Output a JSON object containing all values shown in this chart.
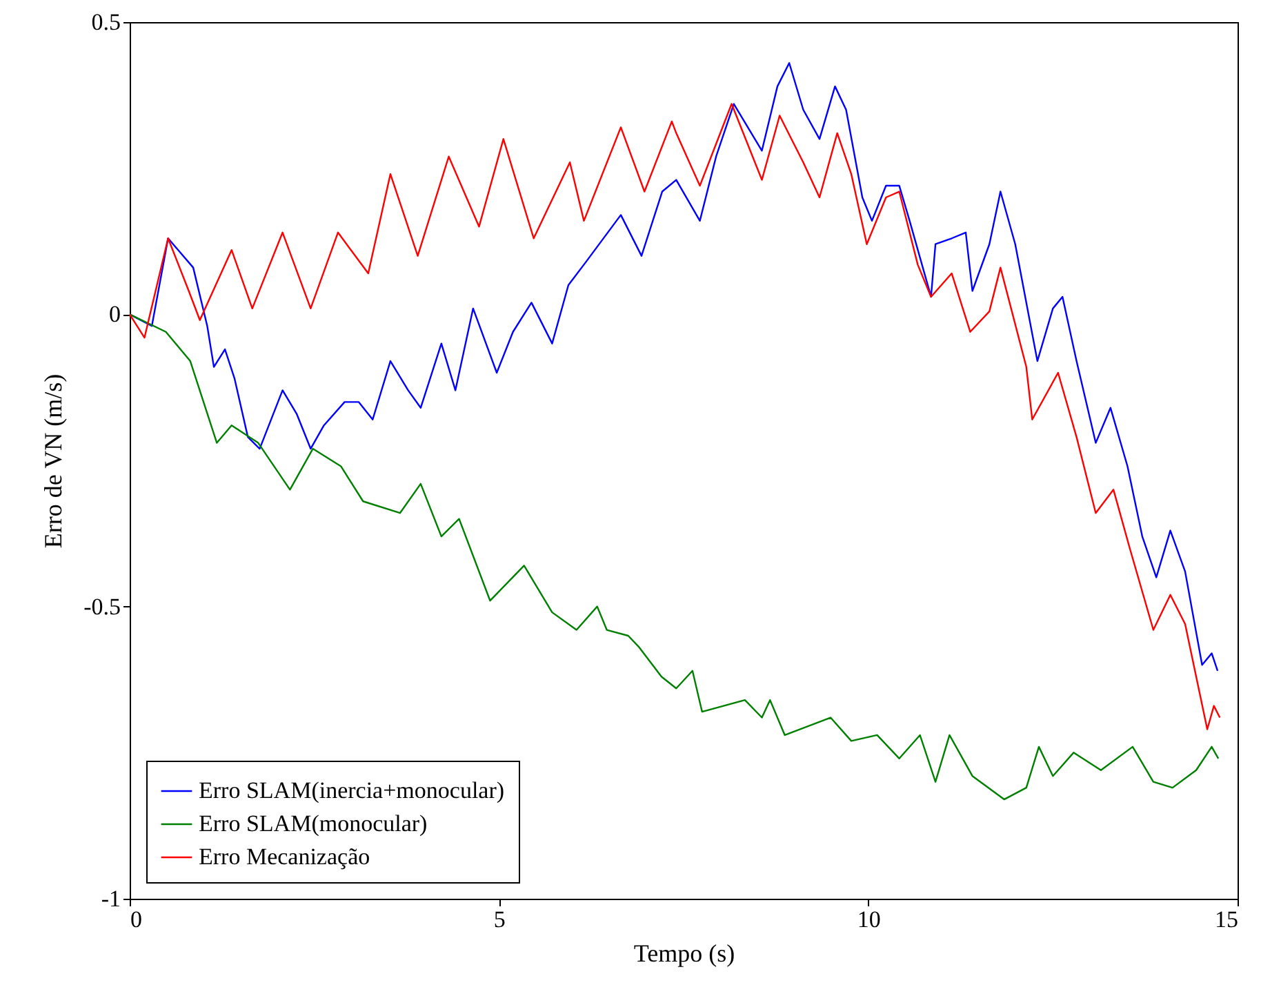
{
  "chart_data": {
    "type": "line",
    "xlabel": "Tempo (s)",
    "ylabel": "Erro de VN (m/s)",
    "xlim": [
      0,
      15
    ],
    "ylim": [
      -1,
      0.5
    ],
    "xticks": [
      0,
      5,
      10,
      15
    ],
    "yticks": [
      -1,
      -0.5,
      0,
      0.5
    ],
    "grid": false,
    "legend": "bottom left",
    "line_style": "solid",
    "marker": "none",
    "series": [
      {
        "name": "Erro SLAM(inercia+monocular)",
        "color": "#0000ff",
        "x": [
          0,
          0.3,
          0.52,
          0.86,
          1.05,
          1.14,
          1.29,
          1.42,
          1.6,
          1.76,
          2.07,
          2.26,
          2.45,
          2.63,
          2.91,
          3.1,
          3.29,
          3.53,
          3.77,
          3.94,
          4.22,
          4.41,
          4.65,
          4.97,
          5.19,
          5.44,
          5.72,
          5.94,
          6.18,
          6.65,
          6.93,
          7.21,
          7.4,
          7.72,
          7.94,
          8.18,
          8.56,
          8.77,
          8.93,
          9.12,
          9.34,
          9.55,
          9.7,
          9.92,
          10.05,
          10.24,
          10.42,
          10.56,
          10.85,
          10.91,
          11.13,
          11.32,
          11.41,
          11.64,
          11.79,
          11.99,
          12.29,
          12.5,
          12.63,
          12.82,
          13.08,
          13.28,
          13.51,
          13.71,
          13.9,
          14.09,
          14.29,
          14.52,
          14.65,
          14.73
        ],
        "values": [
          0,
          -0.02,
          0.13,
          0.08,
          -0.02,
          -0.09,
          -0.06,
          -0.11,
          -0.21,
          -0.23,
          -0.13,
          -0.17,
          -0.23,
          -0.19,
          -0.15,
          -0.15,
          -0.18,
          -0.08,
          -0.13,
          -0.16,
          -0.05,
          -0.13,
          0.01,
          -0.1,
          -0.03,
          0.02,
          -0.05,
          0.05,
          0.09,
          0.17,
          0.1,
          0.21,
          0.23,
          0.16,
          0.27,
          0.36,
          0.28,
          0.39,
          0.43,
          0.35,
          0.3,
          0.39,
          0.35,
          0.2,
          0.16,
          0.22,
          0.22,
          0.16,
          0.03,
          0.12,
          0.13,
          0.14,
          0.04,
          0.12,
          0.21,
          0.12,
          -0.08,
          0.01,
          0.03,
          -0.08,
          -0.22,
          -0.16,
          -0.26,
          -0.38,
          -0.45,
          -0.37,
          -0.44,
          -0.6,
          -0.58,
          -0.61
        ]
      },
      {
        "name": "Erro SLAM(monocular)",
        "color": "#008000",
        "x": [
          0,
          0.49,
          0.82,
          1.18,
          1.38,
          1.74,
          2.17,
          2.48,
          2.86,
          3.16,
          3.66,
          3.94,
          4.22,
          4.46,
          4.88,
          5.34,
          5.72,
          6.05,
          6.33,
          6.46,
          6.75,
          6.9,
          7.2,
          7.4,
          7.62,
          7.75,
          8.33,
          8.56,
          8.67,
          8.87,
          9.49,
          9.77,
          10.12,
          10.42,
          10.7,
          10.91,
          11.1,
          11.41,
          11.84,
          12.14,
          12.31,
          12.5,
          12.78,
          13.15,
          13.58,
          13.86,
          14.12,
          14.44,
          14.65,
          14.74
        ],
        "values": [
          0,
          -0.03,
          -0.08,
          -0.22,
          -0.19,
          -0.22,
          -0.3,
          -0.23,
          -0.26,
          -0.32,
          -0.34,
          -0.29,
          -0.38,
          -0.35,
          -0.49,
          -0.43,
          -0.51,
          -0.54,
          -0.5,
          -0.54,
          -0.55,
          -0.57,
          -0.62,
          -0.64,
          -0.61,
          -0.68,
          -0.66,
          -0.69,
          -0.66,
          -0.72,
          -0.69,
          -0.73,
          -0.72,
          -0.76,
          -0.72,
          -0.8,
          -0.72,
          -0.79,
          -0.83,
          -0.81,
          -0.74,
          -0.79,
          -0.75,
          -0.78,
          -0.74,
          -0.8,
          -0.81,
          -0.78,
          -0.74,
          -0.76
        ]
      },
      {
        "name": "Erro Mecanização",
        "color": "#ff0000",
        "x": [
          0,
          0.2,
          0.52,
          0.8,
          0.95,
          1.38,
          1.66,
          2.07,
          2.45,
          2.82,
          3.23,
          3.53,
          3.9,
          4.32,
          4.73,
          5.06,
          5.47,
          5.96,
          6.15,
          6.65,
          6.97,
          7.34,
          7.4,
          7.72,
          8.15,
          8.56,
          8.8,
          9.12,
          9.34,
          9.58,
          9.77,
          9.98,
          10.24,
          10.42,
          10.67,
          10.85,
          11.13,
          11.38,
          11.64,
          11.79,
          12.14,
          12.22,
          12.57,
          12.82,
          13.08,
          13.32,
          13.54,
          13.86,
          14.09,
          14.29,
          14.59,
          14.68,
          14.76
        ],
        "values": [
          0,
          -0.04,
          0.13,
          0.04,
          -0.01,
          0.11,
          0.01,
          0.14,
          0.01,
          0.14,
          0.07,
          0.24,
          0.1,
          0.27,
          0.15,
          0.3,
          0.13,
          0.26,
          0.16,
          0.32,
          0.21,
          0.33,
          0.31,
          0.22,
          0.36,
          0.23,
          0.34,
          0.26,
          0.2,
          0.31,
          0.24,
          0.12,
          0.2,
          0.21,
          0.085,
          0.03,
          0.07,
          -0.03,
          0.005,
          0.08,
          -0.09,
          -0.18,
          -0.1,
          -0.21,
          -0.34,
          -0.3,
          -0.4,
          -0.54,
          -0.48,
          -0.53,
          -0.71,
          -0.67,
          -0.69
        ]
      }
    ]
  }
}
